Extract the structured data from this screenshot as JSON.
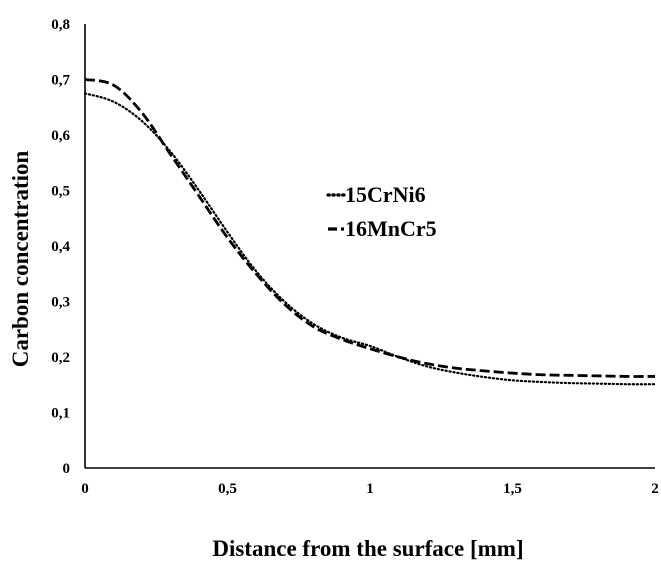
{
  "chart_data": {
    "type": "line",
    "title": "",
    "xlabel": "Distance from the surface [mm]",
    "ylabel": "Carbon concentration",
    "xlim": [
      0,
      2
    ],
    "ylim": [
      0,
      0.8
    ],
    "x_ticks": [
      0,
      0.5,
      1,
      1.5,
      2
    ],
    "x_tick_labels": [
      "0",
      "0,5",
      "1",
      "1,5",
      "2"
    ],
    "y_ticks": [
      0,
      0.1,
      0.2,
      0.3,
      0.4,
      0.5,
      0.6,
      0.7,
      0.8
    ],
    "y_tick_labels": [
      "0",
      "0,1",
      "0,2",
      "0,3",
      "0,4",
      "0,5",
      "0,6",
      "0,7",
      "0,8"
    ],
    "grid": false,
    "legend_position": "middle-right",
    "x": [
      0,
      0.1,
      0.2,
      0.3,
      0.4,
      0.5,
      0.6,
      0.7,
      0.8,
      0.9,
      1.0,
      1.1,
      1.2,
      1.3,
      1.4,
      1.5,
      1.6,
      1.7,
      1.8,
      1.9,
      2.0
    ],
    "series": [
      {
        "name": "15CrNi6",
        "line_style": "dotted",
        "values": [
          0.675,
          0.66,
          0.625,
          0.57,
          0.5,
          0.425,
          0.355,
          0.3,
          0.26,
          0.235,
          0.22,
          0.2,
          0.183,
          0.172,
          0.164,
          0.158,
          0.155,
          0.153,
          0.152,
          0.151,
          0.151
        ]
      },
      {
        "name": "16MnCr5",
        "line_style": "dashed",
        "values": [
          0.7,
          0.69,
          0.64,
          0.565,
          0.49,
          0.415,
          0.35,
          0.295,
          0.255,
          0.232,
          0.215,
          0.2,
          0.188,
          0.18,
          0.175,
          0.171,
          0.168,
          0.167,
          0.166,
          0.165,
          0.165
        ]
      }
    ]
  }
}
